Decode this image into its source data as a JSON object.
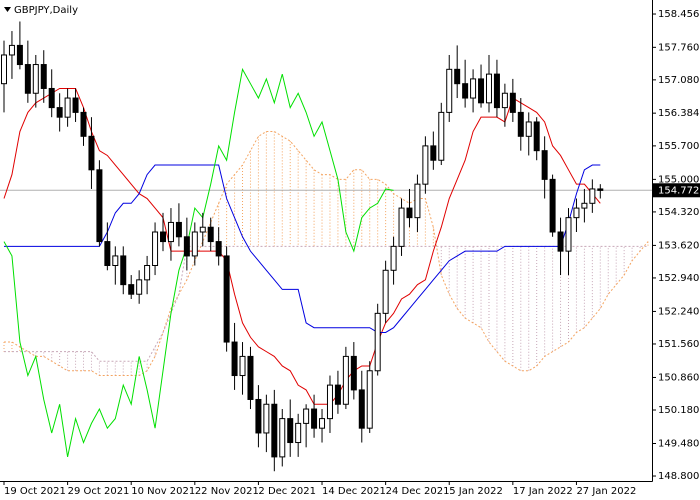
{
  "chart_data": {
    "type": "candlestick",
    "title": "GBPJPY,Daily",
    "categories": [
      "19 Oct 2021",
      null,
      null,
      null,
      null,
      null,
      null,
      null,
      "29 Oct 2021",
      null,
      null,
      null,
      null,
      null,
      null,
      null,
      "10 Nov 2021",
      null,
      null,
      null,
      null,
      null,
      null,
      null,
      "22 Nov 2021",
      null,
      null,
      null,
      null,
      null,
      null,
      null,
      "2 Dec 2021",
      null,
      null,
      null,
      null,
      null,
      null,
      null,
      "14 Dec 2021",
      null,
      null,
      null,
      null,
      null,
      null,
      null,
      "24 Dec 2021",
      null,
      null,
      null,
      null,
      null,
      null,
      null,
      "5 Jan 2022",
      null,
      null,
      null,
      null,
      null,
      null,
      null,
      "17 Jan 2022",
      null,
      null,
      null,
      null,
      null,
      null,
      null,
      "27 Jan 2022",
      null,
      null,
      null,
      null,
      null,
      null,
      null,
      null,
      null
    ],
    "ohlc": {
      "open": [
        157.0,
        157.6,
        157.8,
        157.4,
        156.8,
        157.4,
        156.9,
        156.5,
        156.3,
        156.7,
        156.4,
        155.9,
        155.2,
        153.7,
        153.2,
        153.4,
        152.8,
        152.6,
        152.9,
        153.2,
        153.9,
        153.7,
        154.1,
        153.8,
        153.4,
        153.9,
        154.0,
        153.7,
        153.4,
        151.6,
        150.9,
        151.3,
        150.4,
        149.7,
        150.3,
        149.2,
        150.0,
        149.5,
        149.9,
        150.2,
        149.8,
        150.0,
        150.7,
        150.3,
        151.3,
        150.6,
        149.8,
        151.0,
        152.2,
        153.1,
        153.6,
        154.4,
        154.2,
        154.9,
        155.7,
        155.4,
        156.4,
        157.3,
        157.0,
        156.7,
        157.1,
        156.6,
        157.2,
        156.5,
        156.8,
        156.4,
        155.9,
        156.2,
        155.6,
        155.0,
        153.9,
        153.5,
        154.2,
        154.4,
        154.5,
        154.8,
        null,
        null,
        null,
        null,
        null,
        null
      ],
      "high": [
        157.9,
        158.1,
        158.3,
        157.9,
        157.6,
        157.7,
        157.3,
        156.8,
        156.9,
        156.9,
        156.5,
        156.3,
        155.4,
        154.1,
        153.6,
        153.6,
        153.0,
        153.1,
        153.4,
        154.1,
        154.3,
        154.4,
        154.5,
        154.2,
        154.1,
        154.3,
        154.2,
        154.0,
        153.6,
        152.0,
        151.6,
        151.5,
        150.7,
        150.5,
        150.6,
        150.2,
        150.4,
        150.1,
        150.3,
        150.5,
        150.2,
        150.9,
        151.0,
        151.5,
        151.6,
        151.0,
        151.2,
        152.4,
        153.3,
        153.8,
        154.6,
        154.8,
        155.1,
        155.9,
        156.0,
        156.6,
        157.6,
        157.8,
        157.5,
        157.3,
        157.4,
        157.6,
        157.5,
        157.0,
        157.1,
        156.7,
        156.4,
        156.3,
        155.9,
        155.1,
        154.2,
        154.4,
        154.6,
        154.8,
        155.0,
        154.9,
        null,
        null,
        null,
        null,
        null,
        null
      ],
      "low": [
        156.4,
        157.1,
        157.3,
        156.6,
        156.5,
        156.6,
        156.3,
        156.0,
        156.1,
        156.2,
        155.7,
        154.8,
        153.6,
        153.1,
        152.8,
        152.6,
        152.5,
        152.4,
        152.6,
        153.0,
        153.5,
        153.3,
        153.6,
        153.1,
        153.2,
        153.6,
        153.5,
        153.2,
        151.4,
        150.6,
        150.5,
        150.2,
        149.4,
        149.3,
        148.9,
        149.0,
        149.2,
        149.2,
        149.4,
        149.6,
        149.5,
        149.7,
        150.1,
        150.2,
        150.4,
        149.5,
        149.7,
        150.9,
        152.0,
        152.8,
        153.4,
        154.0,
        153.9,
        154.7,
        155.2,
        155.3,
        156.2,
        156.7,
        156.5,
        156.4,
        156.5,
        156.4,
        156.3,
        156.1,
        156.2,
        155.6,
        155.5,
        155.4,
        154.6,
        153.8,
        153.0,
        153.0,
        153.9,
        154.1,
        154.3,
        154.6,
        null,
        null,
        null,
        null,
        null,
        null
      ],
      "close": [
        157.6,
        157.8,
        157.4,
        156.8,
        157.4,
        156.9,
        156.5,
        156.3,
        156.7,
        156.4,
        155.9,
        155.2,
        153.7,
        153.2,
        153.4,
        152.8,
        152.6,
        152.9,
        153.2,
        153.9,
        153.7,
        154.1,
        153.8,
        153.4,
        153.9,
        154.0,
        153.7,
        153.4,
        151.6,
        150.9,
        151.3,
        150.4,
        149.7,
        150.3,
        149.2,
        150.0,
        149.5,
        149.9,
        150.2,
        149.8,
        150.0,
        150.7,
        150.3,
        151.3,
        150.6,
        149.8,
        151.0,
        152.2,
        153.1,
        153.6,
        154.4,
        154.2,
        154.9,
        155.7,
        155.4,
        156.4,
        157.3,
        157.0,
        156.7,
        157.1,
        156.6,
        157.2,
        156.5,
        156.8,
        156.4,
        155.9,
        156.2,
        155.6,
        155.0,
        153.9,
        153.5,
        154.2,
        154.4,
        154.5,
        154.8,
        154.77,
        null,
        null,
        null,
        null,
        null,
        null
      ],
      "up_color": "#ffffff",
      "down_color": "#000000",
      "outline_color": "#000000"
    },
    "lines": [
      {
        "color": "#e00000",
        "values": [
          154.6,
          155.1,
          156.0,
          156.4,
          156.6,
          156.7,
          156.8,
          156.9,
          156.9,
          156.9,
          156.5,
          156.0,
          155.6,
          155.5,
          155.3,
          155.1,
          154.9,
          154.7,
          154.6,
          154.4,
          154.2,
          153.5,
          153.5,
          153.5,
          153.5,
          153.5,
          153.5,
          153.5,
          153.3,
          152.6,
          152.0,
          151.7,
          151.5,
          151.4,
          151.3,
          151.1,
          151.0,
          150.7,
          150.6,
          150.3,
          150.3,
          150.3,
          150.5,
          150.8,
          151.0,
          151.1,
          151.1,
          151.6,
          152.0,
          152.2,
          152.5,
          152.6,
          152.8,
          152.9,
          153.5,
          154.0,
          154.6,
          155.0,
          155.4,
          156.0,
          156.3,
          156.3,
          156.3,
          156.2,
          156.7,
          156.6,
          156.5,
          156.4,
          156.2,
          155.7,
          155.5,
          155.2,
          154.9,
          154.9,
          154.7,
          154.5,
          null,
          null,
          null,
          null,
          null,
          null
        ]
      },
      {
        "color": "#0000e0",
        "values": [
          153.6,
          153.6,
          153.6,
          153.6,
          153.6,
          153.6,
          153.6,
          153.6,
          153.6,
          153.6,
          153.6,
          153.6,
          153.6,
          153.9,
          154.3,
          154.5,
          154.5,
          154.7,
          155.1,
          155.3,
          155.3,
          155.3,
          155.3,
          155.3,
          155.3,
          155.3,
          155.3,
          155.3,
          154.6,
          154.2,
          153.8,
          153.5,
          153.3,
          153.1,
          152.9,
          152.7,
          152.7,
          152.7,
          152.0,
          151.9,
          151.9,
          151.9,
          151.9,
          151.9,
          151.9,
          151.9,
          151.9,
          151.8,
          151.8,
          151.9,
          152.1,
          152.3,
          152.5,
          152.7,
          152.9,
          153.1,
          153.3,
          153.4,
          153.5,
          153.5,
          153.5,
          153.5,
          153.5,
          153.6,
          153.6,
          153.6,
          153.6,
          153.6,
          153.6,
          153.6,
          153.6,
          154.1,
          154.7,
          155.2,
          155.3,
          155.3,
          null,
          null,
          null,
          null,
          null,
          null
        ]
      },
      {
        "color": "#00e000",
        "values": [
          153.7,
          153.4,
          151.6,
          150.9,
          151.3,
          150.4,
          149.7,
          150.3,
          149.2,
          150.0,
          149.5,
          149.9,
          150.2,
          149.8,
          150.0,
          150.7,
          150.3,
          151.3,
          150.6,
          149.8,
          151.0,
          152.2,
          153.1,
          153.6,
          154.4,
          154.2,
          154.9,
          155.7,
          155.4,
          156.4,
          157.3,
          157.0,
          156.7,
          157.1,
          156.6,
          157.2,
          156.5,
          156.8,
          156.4,
          155.9,
          156.2,
          155.6,
          155.0,
          153.9,
          153.5,
          154.2,
          154.4,
          154.5,
          154.8,
          154.77,
          null,
          null,
          null,
          null,
          null,
          null,
          null,
          null,
          null,
          null,
          null,
          null,
          null,
          null,
          null,
          null,
          null,
          null,
          null,
          null,
          null,
          null,
          null,
          null,
          null,
          null,
          null,
          null,
          null,
          null,
          null,
          null
        ]
      }
    ],
    "cloud": {
      "span_a": [
        151.6,
        151.6,
        151.5,
        151.4,
        151.3,
        151.3,
        151.2,
        151.1,
        151.0,
        151.0,
        151.0,
        151.0,
        150.9,
        150.9,
        150.9,
        150.9,
        150.9,
        150.9,
        151.0,
        151.3,
        151.8,
        152.3,
        152.6,
        152.9,
        153.3,
        153.7,
        154.1,
        154.5,
        154.9,
        155.1,
        155.3,
        155.6,
        155.9,
        156.0,
        156.0,
        155.9,
        155.8,
        155.6,
        155.4,
        155.2,
        155.1,
        155.1,
        155.0,
        155.0,
        155.2,
        155.2,
        155.0,
        155.0,
        154.9,
        154.7,
        154.6,
        154.5,
        154.6,
        154.6,
        154.0,
        153.0,
        152.6,
        152.3,
        152.1,
        152.0,
        151.9,
        151.6,
        151.4,
        151.2,
        151.1,
        151.0,
        151.0,
        151.1,
        151.3,
        151.4,
        151.5,
        151.6,
        151.8,
        151.9,
        152.1,
        152.3,
        152.6,
        152.8,
        153.0,
        153.3,
        153.5,
        153.7
      ],
      "span_b": [
        151.4,
        151.4,
        151.4,
        151.4,
        151.4,
        151.4,
        151.4,
        151.4,
        151.4,
        151.4,
        151.4,
        151.4,
        151.2,
        151.2,
        151.2,
        151.2,
        151.2,
        151.2,
        151.2,
        151.5,
        151.8,
        152.2,
        152.6,
        153.6,
        153.6,
        153.6,
        153.6,
        153.6,
        153.6,
        153.6,
        153.6,
        153.6,
        153.6,
        153.6,
        153.6,
        153.6,
        153.6,
        153.6,
        153.6,
        153.6,
        153.6,
        153.6,
        153.6,
        153.6,
        153.6,
        153.6,
        153.6,
        153.6,
        153.6,
        153.6,
        153.6,
        153.6,
        153.6,
        153.6,
        153.6,
        153.6,
        153.6,
        153.6,
        153.6,
        153.6,
        153.6,
        153.6,
        153.6,
        153.6,
        153.6,
        153.6,
        153.6,
        153.6,
        153.6,
        153.6,
        153.6,
        153.6,
        153.6,
        153.6,
        153.6,
        153.6,
        153.6,
        153.6,
        153.6,
        153.6,
        153.6,
        153.6
      ],
      "up_color": "#f4a460",
      "down_color": "#c8a8b8"
    },
    "last_price": 154.772,
    "price_line_color": "#b0b0b0",
    "ylim": [
      148.696,
      158.749
    ],
    "yticks": [
      158.456,
      {
        "value": 157.76,
        "label": "157.760"
      },
      {
        "value": 157.08,
        "label": "157.080"
      },
      156.384,
      {
        "value": 155.7,
        "label": "155.700"
      },
      {
        "value": 155,
        "label": "155.000"
      },
      {
        "value": 154.32,
        "label": "154.320"
      },
      {
        "value": 153.62,
        "label": "153.620"
      },
      {
        "value": 152.94,
        "label": "152.940"
      },
      {
        "value": 152.24,
        "label": "152.240"
      },
      {
        "value": 151.56,
        "label": "151.560"
      },
      {
        "value": 150.86,
        "label": "150.860"
      },
      {
        "value": 150.18,
        "label": "150.180"
      },
      {
        "value": 149.48,
        "label": "149.480"
      },
      {
        "value": 148.8,
        "label": "148.800"
      }
    ]
  }
}
